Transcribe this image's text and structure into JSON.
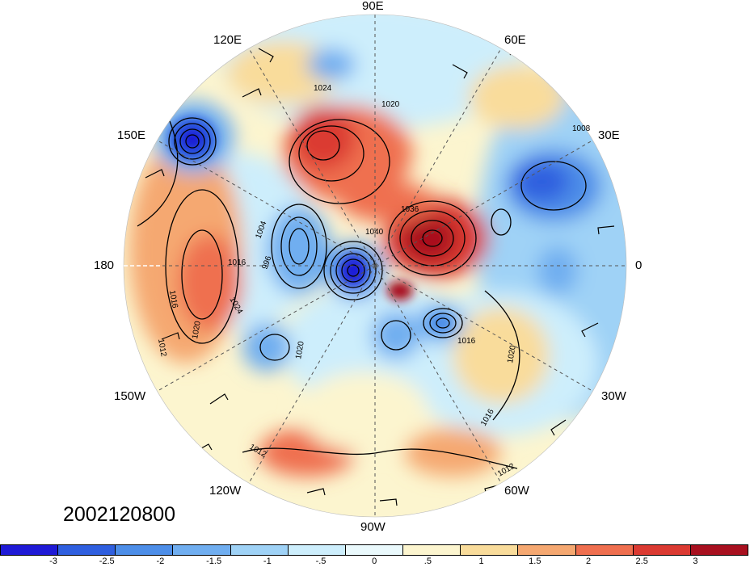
{
  "timestamp": "2002120800",
  "longitude_labels": [
    "90E",
    "60E",
    "30E",
    "0",
    "30W",
    "60W",
    "90W",
    "120W",
    "150W",
    "180",
    "150E",
    "120E"
  ],
  "contour_labels": [
    "1024",
    "1020",
    "1008",
    "1036",
    "1040",
    "1004",
    "996",
    "1016",
    "1016",
    "1016",
    "1024",
    "1020",
    "1012",
    "1020",
    "1016",
    "1020",
    "1012",
    "1012"
  ],
  "colorbar": {
    "tick_labels": [
      "-3",
      "-2.5",
      "-2",
      "-1.5",
      "-1",
      "-.5",
      "0",
      ".5",
      "1",
      "1.5",
      "2",
      "2.5",
      "3"
    ],
    "colors": [
      "#1f1ad6",
      "#2f5fdf",
      "#4d8ee8",
      "#70aef0",
      "#9fd2f6",
      "#cdeefc",
      "#eaf9fc",
      "#fcf5cf",
      "#f9dc9b",
      "#f5a871",
      "#ef6f4f",
      "#db3a32",
      "#a8101f"
    ]
  },
  "anomaly_features": [
    {
      "name": "strong-low-150e",
      "value": -3
    },
    {
      "name": "low-eurasia",
      "value": -2.5
    },
    {
      "name": "high-siberia",
      "value": 2.5
    },
    {
      "name": "high-arctic-europe",
      "value": 2.5
    },
    {
      "name": "low-pole",
      "value": -3
    },
    {
      "name": "low-northern-atlantic",
      "value": -2.5
    },
    {
      "name": "high-pacific",
      "value": 1.5
    },
    {
      "name": "high-north-america",
      "value": 1
    }
  ]
}
